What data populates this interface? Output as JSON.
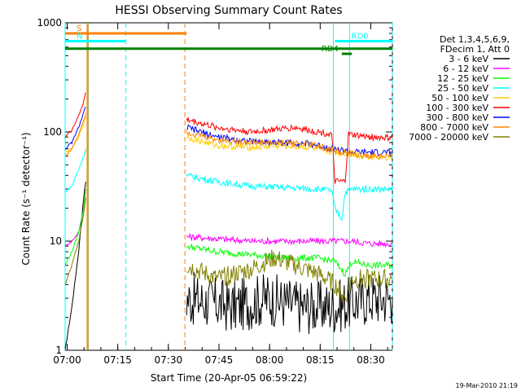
{
  "chart_data": {
    "type": "line",
    "title": "HESSI Observing Summary Count Rates",
    "xlabel": "Start Time (20-Apr-05 06:59:22)",
    "ylabel": "Count Rate (s⁻¹ detector⁻¹)",
    "y_scale": "log",
    "ylim": [
      1,
      1000
    ],
    "xlim_minutes": [
      0,
      97
    ],
    "x_ticks": [
      {
        "t": 0.6,
        "label": "07:00"
      },
      {
        "t": 15.6,
        "label": "07:15"
      },
      {
        "t": 30.6,
        "label": "07:30"
      },
      {
        "t": 45.6,
        "label": "07:45"
      },
      {
        "t": 60.6,
        "label": "08:00"
      },
      {
        "t": 75.6,
        "label": "08:15"
      },
      {
        "t": 90.6,
        "label": "08:30"
      }
    ],
    "y_ticks": [
      {
        "v": 1,
        "label": "1"
      },
      {
        "v": 10,
        "label": "10"
      },
      {
        "v": 100,
        "label": "100"
      },
      {
        "v": 1000,
        "label": "1000"
      }
    ],
    "legend_header": [
      "Det 1,3,4,5,6,9,",
      "FDecim 1, Att 0"
    ],
    "series": [
      {
        "name": "3 - 6 keV",
        "color": "#000000",
        "points": [
          [
            0,
            1
          ],
          [
            2,
            2.5
          ],
          [
            4,
            8
          ],
          [
            5.5,
            25
          ],
          [
            6.1,
            35
          ]
        ],
        "points2": [
          [
            36,
            3
          ],
          [
            50,
            2.5
          ],
          [
            60,
            3
          ],
          [
            70,
            2.5
          ],
          [
            80,
            2.5
          ],
          [
            90,
            3
          ],
          [
            97,
            3
          ]
        ]
      },
      {
        "name": "6 - 12 keV",
        "color": "#ff00ff",
        "points": [
          [
            0,
            9
          ],
          [
            2,
            10
          ],
          [
            4,
            12
          ],
          [
            5.5,
            20
          ],
          [
            6.1,
            30
          ]
        ],
        "points2": [
          [
            36,
            11
          ],
          [
            45,
            10.5
          ],
          [
            55,
            10
          ],
          [
            65,
            10
          ],
          [
            75,
            10
          ],
          [
            80,
            10
          ],
          [
            85,
            10
          ],
          [
            90,
            9.5
          ],
          [
            97,
            9.5
          ]
        ]
      },
      {
        "name": "12 - 25 keV",
        "color": "#00ff00",
        "points": [
          [
            0,
            6
          ],
          [
            2,
            8
          ],
          [
            4,
            12
          ],
          [
            5.5,
            20
          ],
          [
            6.1,
            30
          ]
        ],
        "points2": [
          [
            36,
            9
          ],
          [
            45,
            8
          ],
          [
            55,
            7.5
          ],
          [
            65,
            7
          ],
          [
            75,
            7
          ],
          [
            80,
            6.5
          ],
          [
            83,
            5
          ],
          [
            85,
            6.5
          ],
          [
            90,
            6
          ],
          [
            97,
            6
          ]
        ]
      },
      {
        "name": "25 - 50 keV",
        "color": "#00ffff",
        "points": [
          [
            0,
            28
          ],
          [
            2,
            32
          ],
          [
            4,
            45
          ],
          [
            5.5,
            60
          ],
          [
            6.1,
            70
          ]
        ],
        "points2": [
          [
            36,
            40
          ],
          [
            45,
            35
          ],
          [
            55,
            32
          ],
          [
            65,
            31
          ],
          [
            75,
            30
          ],
          [
            79,
            29
          ],
          [
            80,
            20
          ],
          [
            82,
            16
          ],
          [
            83,
            28
          ],
          [
            85,
            30
          ],
          [
            90,
            30
          ],
          [
            97,
            30
          ]
        ]
      },
      {
        "name": "50 - 100 keV",
        "color": "#ffcc00",
        "points": [
          [
            0,
            65
          ],
          [
            2,
            70
          ],
          [
            4,
            90
          ],
          [
            5.5,
            120
          ],
          [
            6.1,
            140
          ]
        ],
        "points2": [
          [
            36,
            90
          ],
          [
            45,
            75
          ],
          [
            55,
            72
          ],
          [
            65,
            75
          ],
          [
            72,
            72
          ],
          [
            80,
            65
          ],
          [
            85,
            62
          ],
          [
            90,
            60
          ],
          [
            97,
            58
          ]
        ]
      },
      {
        "name": "100 - 300 keV",
        "color": "#ff0000",
        "points": [
          [
            0,
            90
          ],
          [
            2,
            105
          ],
          [
            4,
            140
          ],
          [
            5.5,
            190
          ],
          [
            6.1,
            230
          ]
        ],
        "points2": [
          [
            36,
            130
          ],
          [
            45,
            110
          ],
          [
            55,
            100
          ],
          [
            62,
            105
          ],
          [
            68,
            110
          ],
          [
            75,
            100
          ],
          [
            79,
            95
          ],
          [
            80,
            35
          ],
          [
            83,
            35
          ],
          [
            84,
            95
          ],
          [
            90,
            90
          ],
          [
            97,
            88
          ]
        ]
      },
      {
        "name": "300 - 800 keV",
        "color": "#0000ff",
        "points": [
          [
            0,
            70
          ],
          [
            2,
            80
          ],
          [
            4,
            110
          ],
          [
            5.5,
            150
          ],
          [
            6.1,
            170
          ]
        ],
        "points2": [
          [
            36,
            110
          ],
          [
            45,
            90
          ],
          [
            55,
            82
          ],
          [
            65,
            80
          ],
          [
            72,
            78
          ],
          [
            80,
            70
          ],
          [
            85,
            65
          ],
          [
            90,
            65
          ],
          [
            97,
            65
          ]
        ]
      },
      {
        "name": "800 - 7000 keV",
        "color": "#ff8800",
        "points": [
          [
            0,
            60
          ],
          [
            2,
            70
          ],
          [
            4,
            95
          ],
          [
            5.5,
            130
          ],
          [
            6.1,
            150
          ]
        ],
        "points2": [
          [
            36,
            100
          ],
          [
            45,
            85
          ],
          [
            55,
            80
          ],
          [
            65,
            80
          ],
          [
            72,
            78
          ],
          [
            80,
            68
          ],
          [
            85,
            63
          ],
          [
            90,
            60
          ],
          [
            97,
            60
          ]
        ]
      },
      {
        "name": "7000 - 20000 keV",
        "color": "#808000",
        "points": [
          [
            0,
            4
          ],
          [
            2,
            6
          ],
          [
            4,
            10
          ],
          [
            5.5,
            18
          ],
          [
            6.1,
            25
          ]
        ],
        "points2": [
          [
            36,
            6
          ],
          [
            45,
            4.5
          ],
          [
            55,
            5.5
          ],
          [
            62,
            7
          ],
          [
            68,
            6
          ],
          [
            75,
            5
          ],
          [
            80,
            4
          ],
          [
            83,
            3
          ],
          [
            85,
            4.5
          ],
          [
            90,
            4.5
          ],
          [
            97,
            4.5
          ]
        ]
      }
    ],
    "flag_bars": [
      {
        "label": "S",
        "color": "#ff8000",
        "t_start": 0,
        "t_end": 36,
        "level": 800
      },
      {
        "label": "N",
        "color": "#00ffff",
        "t_start": 0,
        "t_end": 18,
        "level": 680
      },
      {
        "label": "RD4",
        "color": "#008000",
        "t_start": 82,
        "t_end": 85,
        "level": 520
      },
      {
        "label": "RD0",
        "color": "#00ffff",
        "t_start": 80,
        "t_end": 97,
        "level": 680
      },
      {
        "label": "",
        "color": "#008000",
        "t_start": 0,
        "t_end": 97,
        "level": 580
      }
    ],
    "vlines": [
      {
        "t": 18,
        "color": "#00ffff",
        "dash": true
      },
      {
        "t": 35.5,
        "color": "#ff8000",
        "dash": true
      },
      {
        "t": 6.5,
        "color": "#ff8000",
        "dash": false
      },
      {
        "t": 6.8,
        "color": "#808000",
        "dash": false
      },
      {
        "t": 79.5,
        "color": "#00ffff",
        "dash": false
      },
      {
        "t": 84.3,
        "color": "#00ffff",
        "dash": false
      },
      {
        "t": 97,
        "color": "#00ffff",
        "dash": true
      },
      {
        "t": 0,
        "color": "#00ffff",
        "dash": false
      }
    ],
    "footer_date": "19-Mar-2010 21:19"
  }
}
